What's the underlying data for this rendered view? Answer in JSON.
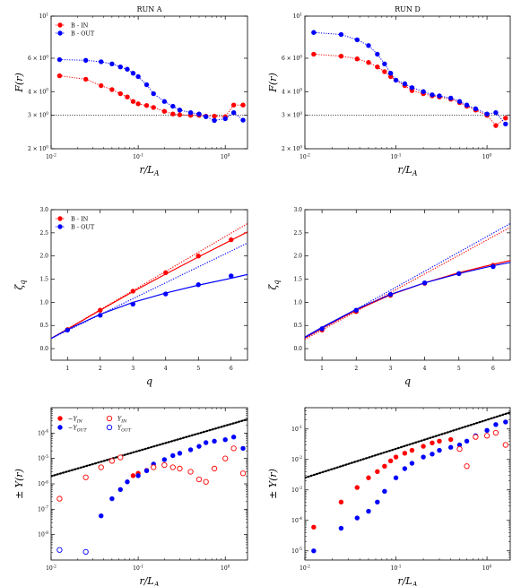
{
  "colors": {
    "in": "#ff0000",
    "out": "#0000ff",
    "ref": "#000000"
  },
  "chart_data": [
    {
      "id": "runA-F",
      "type": "line",
      "title": "RUN A",
      "xlabel": "r/L_A",
      "ylabel": "F(r)",
      "xscale": "log",
      "yscale": "log",
      "xlim": [
        0.01,
        1.8
      ],
      "ylim": [
        2,
        10
      ],
      "xticks": [
        {
          "v": 0.01,
          "label": "10^{-2}"
        },
        {
          "v": 0.1,
          "label": "10^{-1}"
        },
        {
          "v": 1,
          "label": "10^{0}"
        }
      ],
      "yticks": [
        {
          "v": 2,
          "label": "2 × 10^{0}"
        },
        {
          "v": 3,
          "label": "3 × 10^{0}"
        },
        {
          "v": 4,
          "label": "4 × 10^{0}"
        },
        {
          "v": 6,
          "label": "6 × 10^{0}"
        },
        {
          "v": 10,
          "label": "10^{1}"
        }
      ],
      "refline": {
        "y": 3
      },
      "legend": [
        {
          "label": "B - IN",
          "color": "in"
        },
        {
          "label": "B - OUT",
          "color": "out"
        }
      ],
      "series": [
        {
          "name": "B - IN",
          "color": "in",
          "style": "dot-line",
          "x": [
            0.0125,
            0.025,
            0.0375,
            0.05,
            0.0625,
            0.075,
            0.0875,
            0.1,
            0.125,
            0.15,
            0.2,
            0.25,
            0.3,
            0.4,
            0.5,
            0.6,
            0.75,
            1.0,
            1.25,
            1.6
          ],
          "y": [
            4.85,
            4.65,
            4.3,
            4.1,
            3.9,
            3.75,
            3.55,
            3.45,
            3.38,
            3.3,
            3.15,
            3.05,
            3.02,
            3.0,
            3.0,
            2.97,
            2.97,
            2.95,
            3.4,
            3.4
          ]
        },
        {
          "name": "B - OUT",
          "color": "out",
          "style": "dot-line",
          "x": [
            0.0125,
            0.025,
            0.0375,
            0.05,
            0.0625,
            0.075,
            0.0875,
            0.1,
            0.125,
            0.15,
            0.2,
            0.25,
            0.3,
            0.4,
            0.5,
            0.6,
            0.75,
            1.0,
            1.25,
            1.6
          ],
          "y": [
            5.9,
            5.85,
            5.75,
            5.6,
            5.4,
            5.25,
            5.0,
            4.8,
            4.35,
            3.9,
            3.55,
            3.35,
            3.2,
            3.1,
            3.05,
            2.95,
            2.82,
            2.88,
            3.1,
            2.83
          ]
        }
      ]
    },
    {
      "id": "runD-F",
      "type": "line",
      "title": "RUN D",
      "xlabel": "r/L_A",
      "ylabel": "F(r)",
      "xscale": "log",
      "yscale": "log",
      "xlim": [
        0.01,
        1.8
      ],
      "ylim": [
        2,
        10
      ],
      "xticks": [
        {
          "v": 0.01,
          "label": "10^{-2}"
        },
        {
          "v": 0.1,
          "label": "10^{-1}"
        },
        {
          "v": 1,
          "label": "10^{0}"
        }
      ],
      "yticks": [
        {
          "v": 2,
          "label": "2 × 10^{0}"
        },
        {
          "v": 3,
          "label": "3 × 10^{0}"
        },
        {
          "v": 4,
          "label": "4 × 10^{0}"
        },
        {
          "v": 6,
          "label": "6 × 10^{0}"
        },
        {
          "v": 10,
          "label": "10^{1}"
        }
      ],
      "refline": {
        "y": 3
      },
      "series": [
        {
          "name": "B - IN",
          "color": "in",
          "style": "dot-line",
          "x": [
            0.0125,
            0.025,
            0.0375,
            0.05,
            0.0625,
            0.075,
            0.0875,
            0.1,
            0.125,
            0.15,
            0.2,
            0.25,
            0.3,
            0.4,
            0.5,
            0.6,
            0.75,
            1.0,
            1.25,
            1.6
          ],
          "y": [
            6.3,
            6.15,
            5.95,
            5.7,
            5.4,
            5.1,
            4.8,
            4.6,
            4.3,
            4.05,
            3.9,
            3.8,
            3.75,
            3.65,
            3.5,
            3.35,
            3.2,
            3.0,
            2.65,
            2.9
          ]
        },
        {
          "name": "B - OUT",
          "color": "out",
          "style": "dot-line",
          "x": [
            0.0125,
            0.025,
            0.0375,
            0.05,
            0.0625,
            0.075,
            0.0875,
            0.1,
            0.125,
            0.15,
            0.2,
            0.25,
            0.3,
            0.4,
            0.5,
            0.6,
            0.75,
            1.0,
            1.25,
            1.6
          ],
          "y": [
            8.2,
            8.0,
            7.5,
            7.0,
            6.3,
            5.6,
            5.0,
            4.6,
            4.4,
            4.2,
            4.0,
            3.85,
            3.8,
            3.7,
            3.55,
            3.4,
            3.25,
            3.05,
            3.1,
            2.7
          ]
        }
      ]
    },
    {
      "id": "runA-zeta",
      "type": "scatter",
      "xlabel": "q",
      "ylabel": "ζ_q",
      "xlim": [
        0.5,
        6.5
      ],
      "ylim": [
        -0.25,
        3.0
      ],
      "xticks": [
        {
          "v": 1,
          "label": "1"
        },
        {
          "v": 2,
          "label": "2"
        },
        {
          "v": 3,
          "label": "3"
        },
        {
          "v": 4,
          "label": "4"
        },
        {
          "v": 5,
          "label": "5"
        },
        {
          "v": 6,
          "label": "6"
        }
      ],
      "yticks": [
        {
          "v": 0,
          "label": "0.0"
        },
        {
          "v": 0.5,
          "label": "0.5"
        },
        {
          "v": 1,
          "label": "1.0"
        },
        {
          "v": 1.5,
          "label": "1.5"
        },
        {
          "v": 2,
          "label": "2.0"
        },
        {
          "v": 2.5,
          "label": "2.5"
        },
        {
          "v": 3,
          "label": "3.0"
        }
      ],
      "legend": [
        {
          "label": "B - IN",
          "color": "in"
        },
        {
          "label": "B - OUT",
          "color": "out"
        }
      ],
      "series": [
        {
          "name": "B - IN",
          "color": "in",
          "x": [
            1,
            2,
            3,
            4,
            5,
            6
          ],
          "y": [
            0.41,
            0.83,
            1.24,
            1.64,
            2.0,
            2.35
          ]
        },
        {
          "name": "B - OUT",
          "color": "out",
          "x": [
            1,
            2,
            3,
            4,
            5,
            6
          ],
          "y": [
            0.4,
            0.72,
            0.96,
            1.18,
            1.38,
            1.57
          ]
        }
      ],
      "fits": [
        {
          "color": "in",
          "style": "solid",
          "x": [
            0.5,
            1,
            2,
            3,
            4,
            5,
            6,
            6.5
          ],
          "y": [
            0.22,
            0.42,
            0.83,
            1.23,
            1.61,
            1.98,
            2.34,
            2.52
          ]
        },
        {
          "color": "in",
          "style": "dotted",
          "x": [
            0.5,
            6.5
          ],
          "y": [
            0.22,
            2.7
          ]
        },
        {
          "color": "out",
          "style": "solid",
          "x": [
            0.5,
            1,
            2,
            3,
            4,
            5,
            6,
            6.5
          ],
          "y": [
            0.22,
            0.41,
            0.74,
            1.0,
            1.2,
            1.37,
            1.52,
            1.6
          ]
        },
        {
          "color": "out",
          "style": "dotted",
          "x": [
            0.5,
            6.5
          ],
          "y": [
            0.22,
            2.28
          ]
        }
      ]
    },
    {
      "id": "runD-zeta",
      "type": "scatter",
      "xlabel": "q",
      "ylabel": "ζ_q",
      "xlim": [
        0.5,
        6.5
      ],
      "ylim": [
        -0.25,
        3.0
      ],
      "xticks": [
        {
          "v": 1,
          "label": "1"
        },
        {
          "v": 2,
          "label": "2"
        },
        {
          "v": 3,
          "label": "3"
        },
        {
          "v": 4,
          "label": "4"
        },
        {
          "v": 5,
          "label": "5"
        },
        {
          "v": 6,
          "label": "6"
        }
      ],
      "yticks": [
        {
          "v": 0,
          "label": "0.0"
        },
        {
          "v": 0.5,
          "label": "0.5"
        },
        {
          "v": 1,
          "label": "1.0"
        },
        {
          "v": 1.5,
          "label": "1.5"
        },
        {
          "v": 2,
          "label": "2.0"
        },
        {
          "v": 2.5,
          "label": "2.5"
        },
        {
          "v": 3,
          "label": "3.0"
        }
      ],
      "series": [
        {
          "name": "B - IN",
          "color": "in",
          "x": [
            1,
            2,
            3,
            4,
            5,
            6
          ],
          "y": [
            0.4,
            0.8,
            1.15,
            1.41,
            1.62,
            1.8
          ]
        },
        {
          "name": "B - OUT",
          "color": "out",
          "x": [
            1,
            2,
            3,
            4,
            5,
            6
          ],
          "y": [
            0.43,
            0.83,
            1.17,
            1.42,
            1.62,
            1.77
          ]
        }
      ],
      "fits": [
        {
          "color": "in",
          "style": "solid",
          "x": [
            0.5,
            1,
            2,
            3,
            4,
            5,
            6,
            6.5
          ],
          "y": [
            0.23,
            0.44,
            0.83,
            1.16,
            1.42,
            1.64,
            1.82,
            1.9
          ]
        },
        {
          "color": "out",
          "style": "solid",
          "x": [
            0.5,
            1,
            2,
            3,
            4,
            5,
            6,
            6.5
          ],
          "y": [
            0.25,
            0.46,
            0.85,
            1.17,
            1.42,
            1.62,
            1.79,
            1.86
          ]
        },
        {
          "color": "in",
          "style": "dotted",
          "x": [
            0.5,
            6.5
          ],
          "y": [
            0.2,
            2.62
          ]
        },
        {
          "color": "out",
          "style": "dotted",
          "x": [
            0.5,
            6.5
          ],
          "y": [
            0.23,
            2.7
          ]
        }
      ]
    },
    {
      "id": "runA-Y",
      "type": "scatter",
      "xlabel": "r/L_A",
      "ylabel": "± Y(r)",
      "xscale": "log",
      "yscale": "log",
      "xlim": [
        0.01,
        1.8
      ],
      "ylim": [
        1e-09,
        0.001
      ],
      "xticks": [
        {
          "v": 0.01,
          "label": "10^{-2}"
        },
        {
          "v": 0.1,
          "label": "10^{-1}"
        },
        {
          "v": 1,
          "label": "10^{0}"
        }
      ],
      "yticks": [
        {
          "v": 1e-08,
          "label": "10^{-8}"
        },
        {
          "v": 1e-07,
          "label": "10^{-7}"
        },
        {
          "v": 1e-06,
          "label": "10^{-6}"
        },
        {
          "v": 1e-05,
          "label": "10^{-5}"
        },
        {
          "v": 0.0001,
          "label": "10^{-4}"
        }
      ],
      "refline": {
        "x": [
          0.01,
          1.8
        ],
        "y": [
          2e-06,
          0.00035
        ]
      },
      "legend": [
        {
          "label": "−Y_{IN}",
          "color": "in",
          "filled": true
        },
        {
          "label": "−Y_{OUT}",
          "color": "out",
          "filled": true
        },
        {
          "label": "Y_{IN}",
          "color": "in",
          "filled": false
        },
        {
          "label": "Y_{OUT}",
          "color": "out",
          "filled": false
        }
      ],
      "series": [
        {
          "name": "−Y_{IN}",
          "color": "in",
          "filled": true,
          "x": [
            0.0875,
            0.1,
            0.125
          ],
          "y": [
            2.1e-06,
            2.6e-06,
            3.4e-06
          ]
        },
        {
          "name": "−Y_{OUT}",
          "color": "out",
          "filled": true,
          "x": [
            0.0375,
            0.05,
            0.0625,
            0.075,
            0.1,
            0.125,
            0.15,
            0.2,
            0.25,
            0.3,
            0.4,
            0.5,
            0.6,
            0.75,
            1.0,
            1.25,
            1.6
          ],
          "y": [
            5.5e-08,
            2.6e-07,
            6e-07,
            1.2e-06,
            2.1e-06,
            3.3e-06,
            6e-06,
            9e-06,
            1.3e-05,
            1.6e-05,
            2.2e-05,
            3e-05,
            4.2e-05,
            4.8e-05,
            5.5e-05,
            7e-05,
            2.5e-05
          ]
        },
        {
          "name": "Y_{IN}",
          "color": "in",
          "filled": false,
          "x": [
            0.0125,
            0.025,
            0.0375,
            0.05,
            0.0625,
            0.15,
            0.2,
            0.25,
            0.3,
            0.4,
            0.5,
            0.6,
            0.75,
            1.0,
            1.25,
            1.6
          ],
          "y": [
            2.6e-07,
            1.8e-06,
            4.5e-06,
            8e-06,
            1.1e-05,
            4.5e-06,
            5.5e-06,
            4.5e-06,
            4e-06,
            3e-06,
            1.5e-06,
            1.2e-06,
            4e-06,
            1e-05,
            2.5e-05,
            2.6e-06
          ]
        },
        {
          "name": "Y_{OUT}",
          "color": "out",
          "filled": false,
          "x": [
            0.0125,
            0.025
          ],
          "y": [
            2.5e-09,
            2.1e-09
          ]
        }
      ]
    },
    {
      "id": "runD-Y",
      "type": "scatter",
      "xlabel": "r/L_A",
      "ylabel": "± Y(r)",
      "xscale": "log",
      "yscale": "log",
      "xlim": [
        0.01,
        1.8
      ],
      "ylim": [
        5e-06,
        0.5
      ],
      "xticks": [
        {
          "v": 0.01,
          "label": "10^{-2}"
        },
        {
          "v": 0.1,
          "label": "10^{-1}"
        },
        {
          "v": 1,
          "label": "10^{0}"
        }
      ],
      "yticks": [
        {
          "v": 1e-05,
          "label": "10^{-5}"
        },
        {
          "v": 0.0001,
          "label": "10^{-4}"
        },
        {
          "v": 0.001,
          "label": "10^{-3}"
        },
        {
          "v": 0.01,
          "label": "10^{-2}"
        },
        {
          "v": 0.1,
          "label": "10^{-1}"
        }
      ],
      "refline": {
        "x": [
          0.01,
          1.8
        ],
        "y": [
          0.0025,
          0.35
        ]
      },
      "series": [
        {
          "name": "−Y_{IN}",
          "color": "in",
          "filled": true,
          "x": [
            0.0125,
            0.025,
            0.0375,
            0.05,
            0.0625,
            0.075,
            0.0875,
            0.1,
            0.125,
            0.15,
            0.2,
            0.25,
            0.3,
            0.4
          ],
          "y": [
            6e-05,
            0.0004,
            0.0012,
            0.0025,
            0.004,
            0.006,
            0.009,
            0.012,
            0.016,
            0.02,
            0.027,
            0.035,
            0.04,
            0.045
          ]
        },
        {
          "name": "−Y_{OUT}",
          "color": "out",
          "filled": true,
          "x": [
            0.0125,
            0.025,
            0.0375,
            0.05,
            0.0625,
            0.075,
            0.1,
            0.125,
            0.15,
            0.2,
            0.25,
            0.3,
            0.4,
            0.5,
            0.6,
            0.75,
            1.0,
            1.25,
            1.6
          ],
          "y": [
            1e-05,
            5.5e-05,
            0.00012,
            0.0002,
            0.0004,
            0.0009,
            0.0025,
            0.005,
            0.0075,
            0.012,
            0.015,
            0.02,
            0.025,
            0.03,
            0.04,
            0.06,
            0.09,
            0.14,
            0.17
          ]
        },
        {
          "name": "Y_{IN}",
          "color": "in",
          "filled": false,
          "x": [
            0.5,
            0.6,
            0.75,
            1.0,
            1.25,
            1.6
          ],
          "y": [
            0.022,
            0.006,
            0.055,
            0.06,
            0.075,
            0.03
          ]
        }
      ]
    }
  ]
}
